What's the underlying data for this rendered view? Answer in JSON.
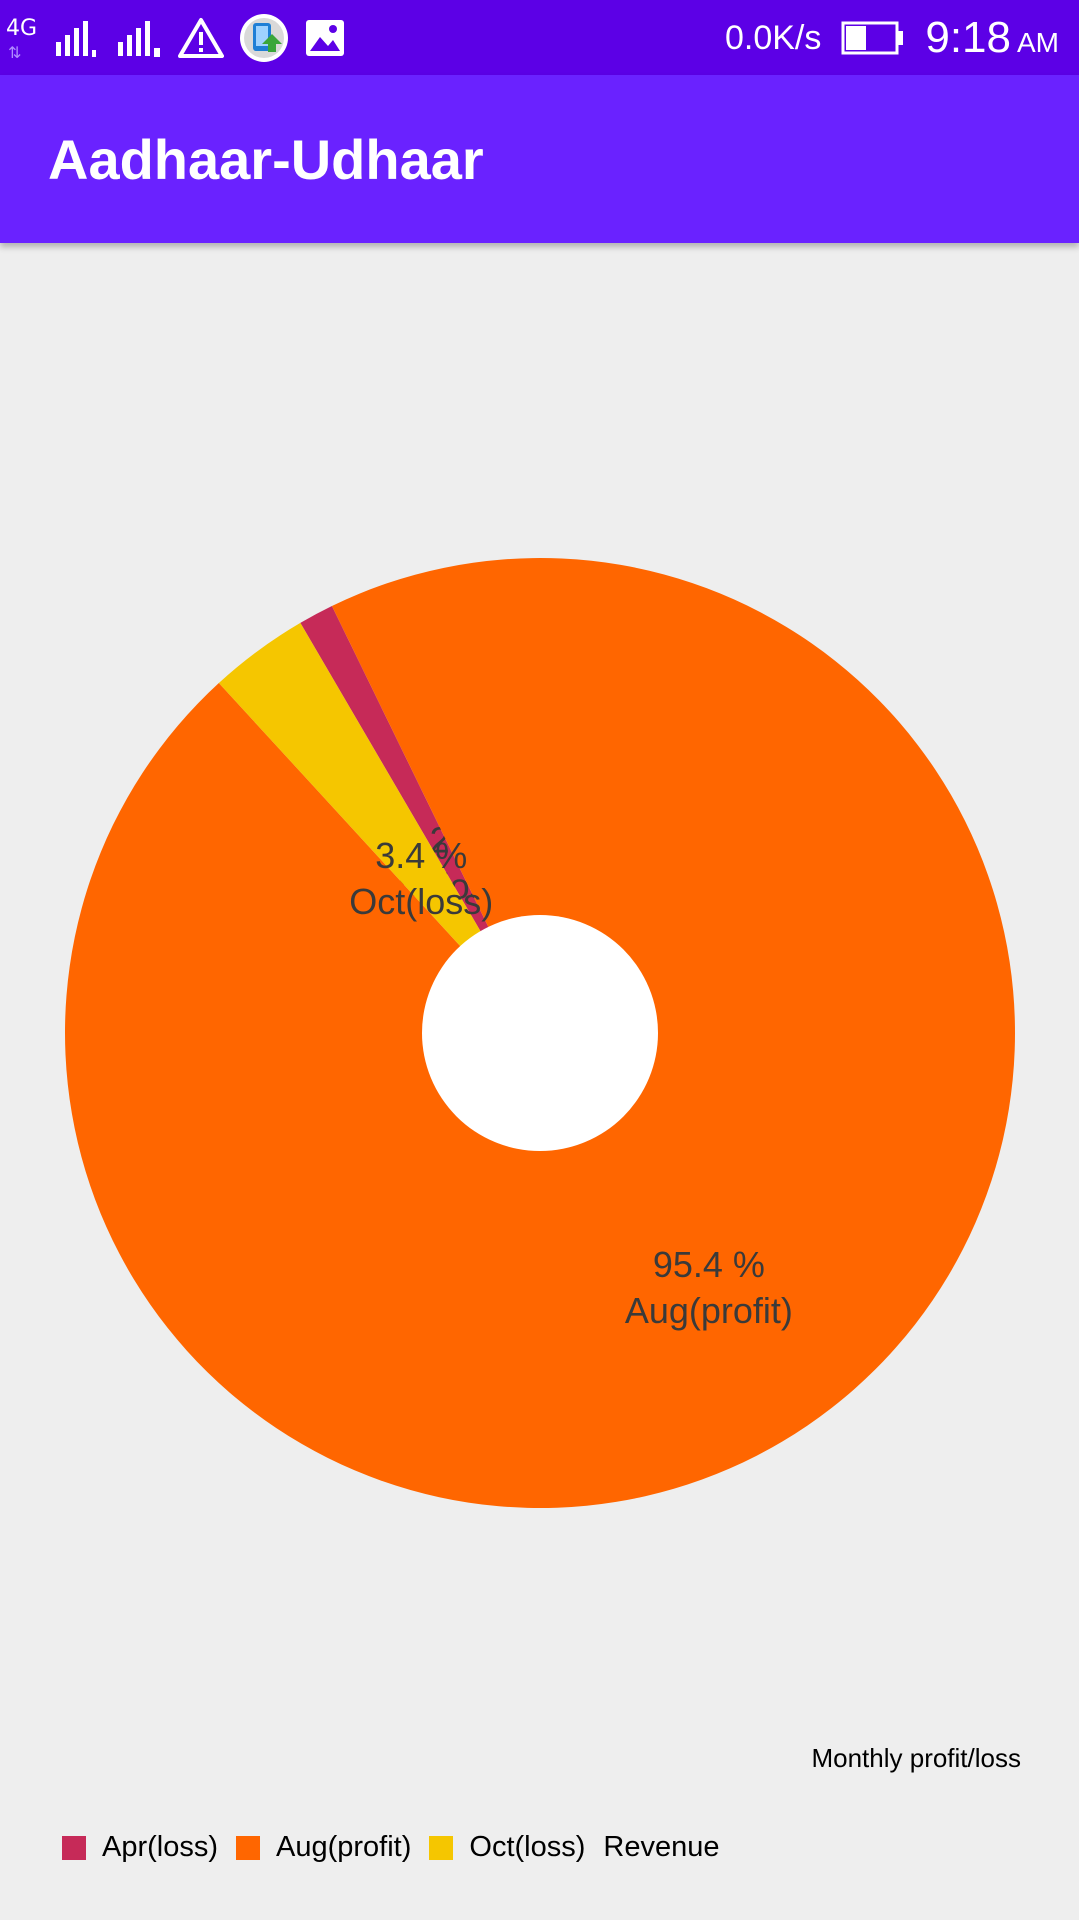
{
  "status_bar": {
    "network_type": "4G",
    "data_speed": "0.0K/s",
    "time": "9:18",
    "ampm": "AM",
    "icons": [
      "signal-sim1-icon",
      "signal-sim2-icon",
      "warning-icon",
      "app-update-icon",
      "image-icon",
      "battery-icon"
    ]
  },
  "app_bar": {
    "title": "Aadhaar-Udhaar"
  },
  "chart_data": {
    "type": "pie",
    "donut": true,
    "categories": [
      "Apr(loss)",
      "Aug(profit)",
      "Oct(loss)"
    ],
    "values": [
      1.2,
      95.4,
      3.4
    ],
    "value_labels": [
      "1.2 %",
      "95.4 %",
      "3.4 %"
    ],
    "colors": [
      "#c62a58",
      "#ff6600",
      "#f5c600"
    ],
    "description": "Monthly profit/loss",
    "legend_placement": "bottom-left",
    "legend_entries": [
      "Apr(loss)",
      "Aug(profit)",
      "Oct(loss)"
    ],
    "legend_trailing_label": "Revenue"
  }
}
